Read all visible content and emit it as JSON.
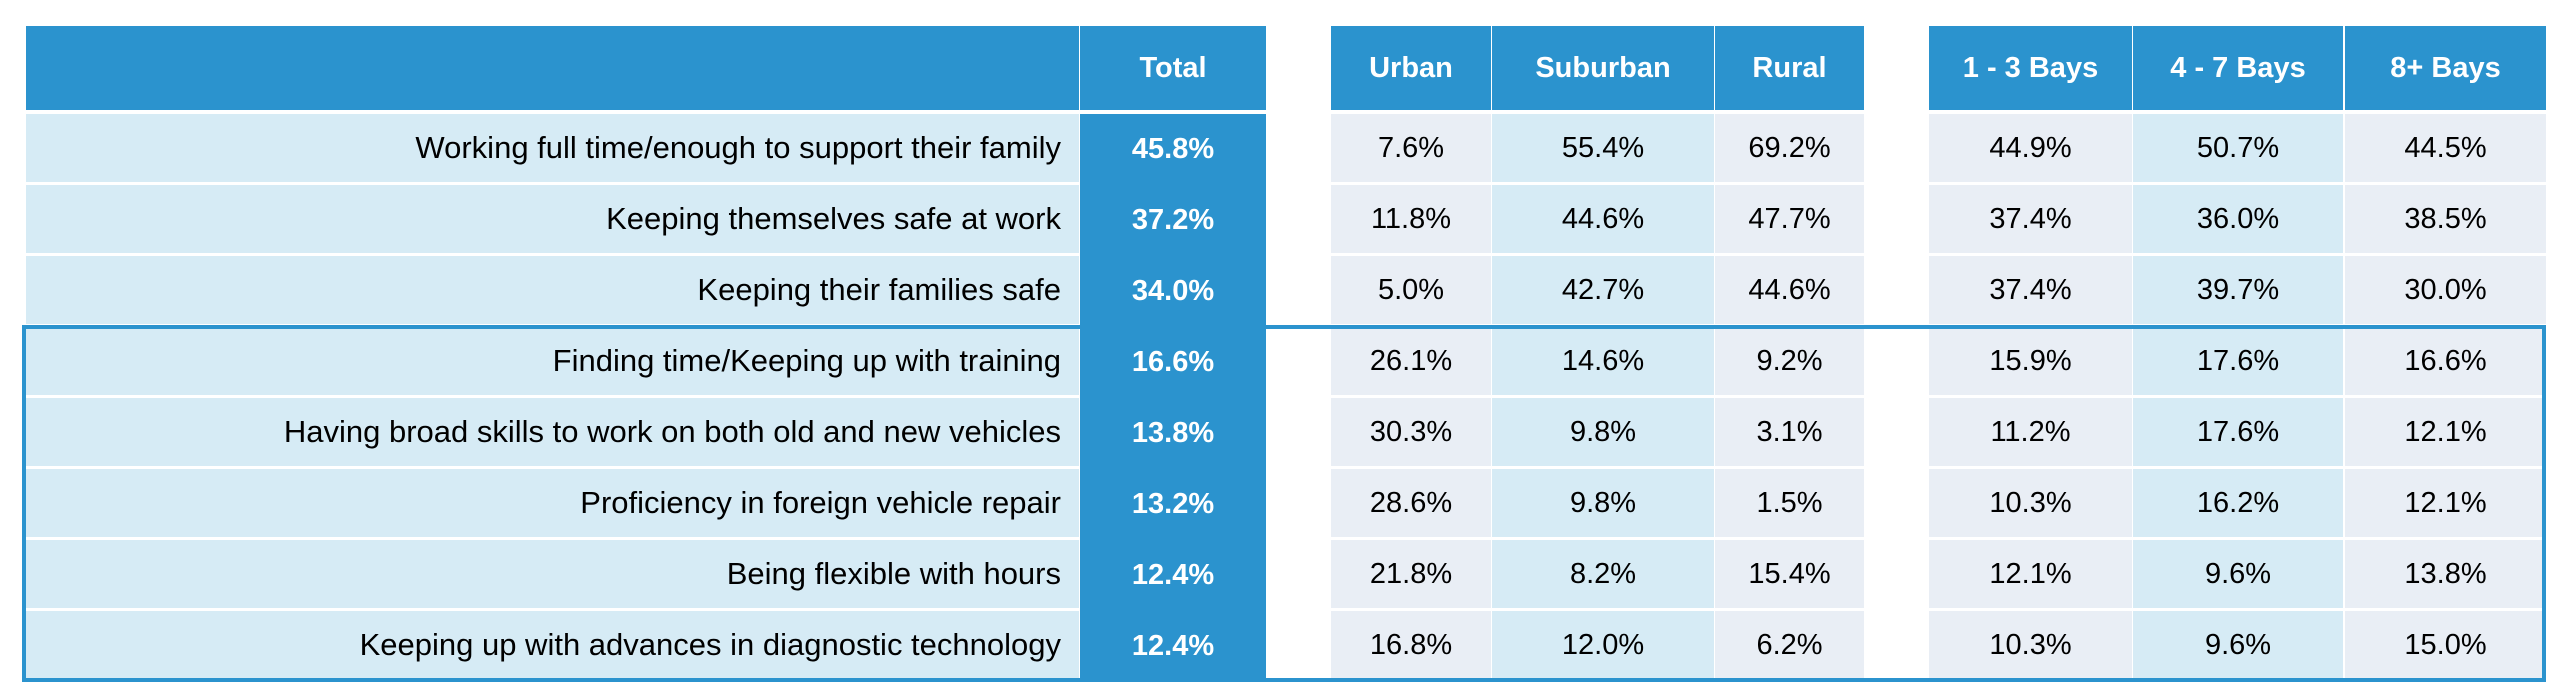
{
  "chart_data": {
    "type": "table",
    "columns": [
      "",
      "Total",
      "Urban",
      "Suburban",
      "Rural",
      "1 - 3 Bays",
      "4 - 7 Bays",
      "8+ Bays"
    ],
    "rows": [
      {
        "label": "Working full time/enough to support their family",
        "values": [
          "45.8%",
          "7.6%",
          "55.4%",
          "69.2%",
          "44.9%",
          "50.7%",
          "44.5%"
        ]
      },
      {
        "label": "Keeping themselves safe at work",
        "values": [
          "37.2%",
          "11.8%",
          "44.6%",
          "47.7%",
          "37.4%",
          "36.0%",
          "38.5%"
        ]
      },
      {
        "label": "Keeping their families safe",
        "values": [
          "34.0%",
          "5.0%",
          "42.7%",
          "44.6%",
          "37.4%",
          "39.7%",
          "30.0%"
        ]
      },
      {
        "label": "Finding time/Keeping up with training",
        "values": [
          "16.6%",
          "26.1%",
          "14.6%",
          "9.2%",
          "15.9%",
          "17.6%",
          "16.6%"
        ]
      },
      {
        "label": "Having broad skills to work on both old and new vehicles",
        "values": [
          "13.8%",
          "30.3%",
          "9.8%",
          "3.1%",
          "11.2%",
          "17.6%",
          "12.1%"
        ]
      },
      {
        "label": "Proficiency in foreign vehicle repair",
        "values": [
          "13.2%",
          "28.6%",
          "9.8%",
          "1.5%",
          "10.3%",
          "16.2%",
          "12.1%"
        ]
      },
      {
        "label": "Being flexible with hours",
        "values": [
          "12.4%",
          "21.8%",
          "8.2%",
          "15.4%",
          "12.1%",
          "9.6%",
          "13.8%"
        ]
      },
      {
        "label": "Keeping up with advances in diagnostic technology",
        "values": [
          "12.4%",
          "16.8%",
          "12.0%",
          "6.2%",
          "10.3%",
          "9.6%",
          "15.0%"
        ]
      }
    ],
    "highlighted_rows": [
      3,
      4,
      5,
      6,
      7
    ],
    "colors": {
      "header": "#2b93ce",
      "label_bg": "#d6ebf5",
      "cell_light": "#e9eef5",
      "cell_blue": "#d6ebf5",
      "highlight_border": "#2b93ce"
    }
  }
}
